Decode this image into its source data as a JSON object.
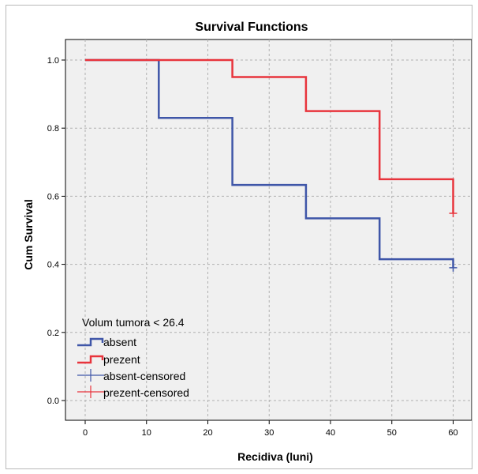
{
  "chart_data": {
    "type": "line",
    "title": "Survival Functions",
    "xlabel": "Recidiva (luni)",
    "ylabel": "Cum Survival",
    "xlim": [
      -3,
      63
    ],
    "ylim": [
      -0.03,
      1.08
    ],
    "x_ticks": [
      0,
      10,
      20,
      30,
      40,
      50,
      60
    ],
    "y_ticks": [
      0.0,
      0.2,
      0.4,
      0.6,
      0.8,
      1.0
    ],
    "x_tick_labels": [
      "0",
      "10",
      "20",
      "30",
      "40",
      "50",
      "60"
    ],
    "y_tick_labels": [
      "0.0",
      "0.2",
      "0.4",
      "0.6",
      "0.8",
      "1.0"
    ],
    "grid": true,
    "legend_title": "Volum tumora < 26.4",
    "legend_position": "bottom-left",
    "series": [
      {
        "name": "absent",
        "color": "#3f56a8",
        "step": [
          [
            0,
            1.0
          ],
          [
            12,
            0.83
          ],
          [
            24,
            0.633
          ],
          [
            36,
            0.535
          ],
          [
            48,
            0.415
          ],
          [
            60,
            0.39
          ]
        ],
        "censored": [
          [
            60,
            0.39
          ]
        ]
      },
      {
        "name": "prezent",
        "color": "#e8343c",
        "step": [
          [
            0,
            1.0
          ],
          [
            24,
            0.95
          ],
          [
            36,
            0.85
          ],
          [
            48,
            0.65
          ],
          [
            60,
            0.55
          ]
        ],
        "censored": [
          [
            60,
            0.55
          ]
        ]
      }
    ],
    "legend_entries": [
      {
        "label": "absent",
        "kind": "step",
        "color": "#3f56a8"
      },
      {
        "label": "prezent",
        "kind": "step",
        "color": "#e8343c"
      },
      {
        "label": "absent-censored",
        "kind": "cross",
        "color": "#3f56a8"
      },
      {
        "label": "prezent-censored",
        "kind": "cross",
        "color": "#e8343c"
      }
    ]
  }
}
